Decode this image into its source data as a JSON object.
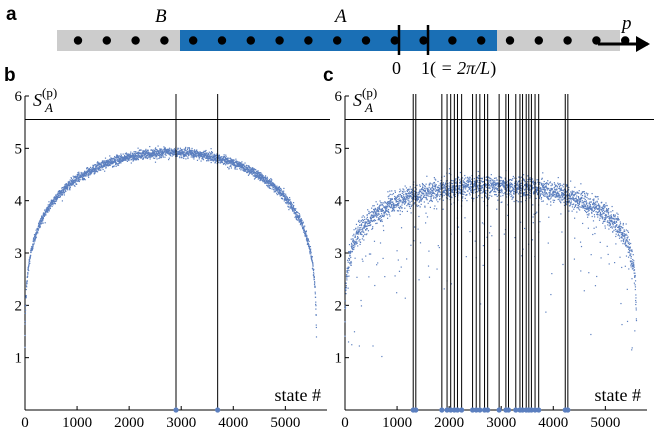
{
  "panel_a": {
    "letter": "a",
    "label_b": "B",
    "label_a": "A",
    "label_p": "p",
    "tick_zero": "0",
    "tick_one_prefix": "1(",
    "tick_one_math": " = 2π/L",
    "tick_one_suffix": ")",
    "n_sites": 20,
    "region_a_start_site": 4,
    "region_a_end_site": 14,
    "marker_zero_between_sites": [
      11,
      12
    ],
    "marker_one_between_sites": [
      12,
      13
    ],
    "colors": {
      "region_a": "#1a6fb5",
      "region_b": "#cccccc",
      "dot": "#000000"
    }
  },
  "chart_data": [
    {
      "panel": "b",
      "type": "scatter",
      "ylabel_main": "S",
      "ylabel_super": "(p)",
      "ylabel_sub": "A",
      "xlabel": "state #",
      "xlim": [
        0,
        5800
      ],
      "ylim": [
        0,
        6
      ],
      "x_ticks": [
        0,
        1000,
        2000,
        3000,
        4000,
        5000
      ],
      "y_ticks": [
        1,
        2,
        3,
        4,
        5,
        6
      ],
      "y_tick_labels": [
        "1",
        "2",
        "3",
        "4",
        "5",
        "6"
      ],
      "x_tick_labels": [
        "0",
        "1000",
        "2000",
        "3000",
        "4000",
        "5000"
      ],
      "reference_line_y": 5.55,
      "n_states": 5600,
      "plateau": 4.92,
      "vertical_lines_x": [
        2900,
        3700
      ],
      "color": "#5b7fbf"
    },
    {
      "panel": "c",
      "type": "scatter",
      "ylabel_main": "S",
      "ylabel_super": "(p)",
      "ylabel_sub": "A",
      "xlabel": "state #",
      "xlim": [
        0,
        5800
      ],
      "ylim": [
        0,
        6
      ],
      "x_ticks": [
        0,
        1000,
        2000,
        3000,
        4000,
        5000
      ],
      "y_ticks": [
        1,
        2,
        3,
        4,
        5,
        6
      ],
      "y_tick_labels": [
        "1",
        "2",
        "3",
        "4",
        "5",
        "6"
      ],
      "x_tick_labels": [
        "0",
        "1000",
        "2000",
        "3000",
        "4000",
        "5000"
      ],
      "reference_line_y": 5.55,
      "n_states": 5600,
      "plateau": 4.28,
      "vertical_lines_x": [
        1310,
        1360,
        1860,
        1960,
        2030,
        2100,
        2160,
        2240,
        2450,
        2520,
        2590,
        2680,
        2740,
        2960,
        3090,
        3140,
        3280,
        3360,
        3410,
        3480,
        3530,
        3580,
        3650,
        3720,
        4230,
        4280
      ],
      "color": "#5b7fbf"
    }
  ]
}
